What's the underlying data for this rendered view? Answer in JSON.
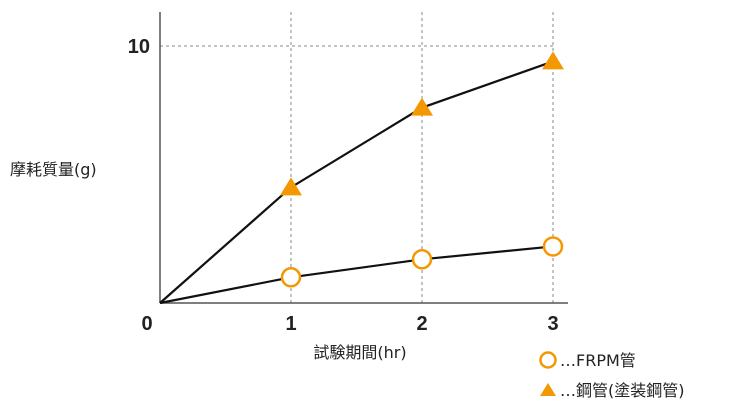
{
  "chart_data": {
    "type": "line",
    "xlabel": "試験期間(hr)",
    "ylabel": "摩耗質量(g)",
    "x": [
      0,
      1,
      2,
      3
    ],
    "x_ticks": [
      "0",
      "1",
      "2",
      "3"
    ],
    "y_ticks": [
      {
        "value": 0,
        "label": "0"
      },
      {
        "value": 10,
        "label": "10"
      }
    ],
    "xlim": [
      0,
      3.1
    ],
    "ylim": [
      0,
      11.2
    ],
    "grid": "dotted at x=1,2,3 and y=10",
    "legend_position": "bottom-right",
    "series": [
      {
        "name": "…FRPM管",
        "marker": "circle-open",
        "color": "#f39800",
        "values": [
          0,
          1.0,
          1.7,
          2.2
        ]
      },
      {
        "name": "…鋼管(塗装鋼管)",
        "marker": "triangle-filled",
        "color": "#f39800",
        "values": [
          0,
          4.5,
          7.6,
          9.4
        ]
      }
    ]
  }
}
